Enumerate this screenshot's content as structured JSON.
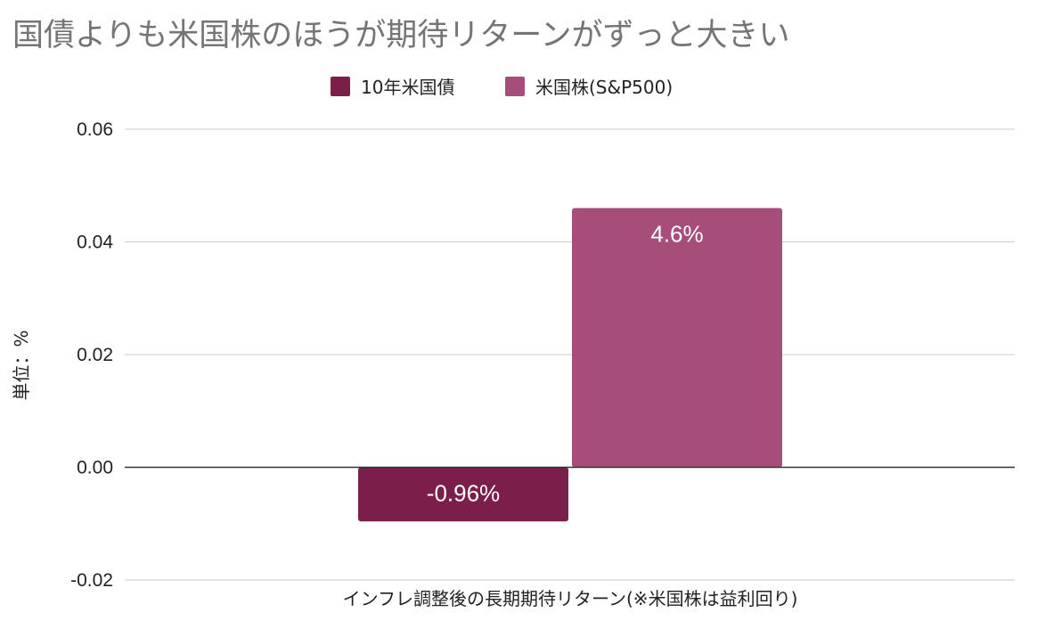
{
  "chart_data": {
    "type": "bar",
    "title": "国債よりも米国株のほうが期待リターンがずっと大きい",
    "xlabel": "インフレ調整後の長期期待リターン(※米国株は益利回り)",
    "ylabel": "単位：%",
    "ylim": [
      -0.02,
      0.06
    ],
    "yticks": [
      0.06,
      0.04,
      0.02,
      0.0,
      -0.02
    ],
    "ytick_labels": [
      "0.06",
      "0.04",
      "0.02",
      "0.00",
      "-0.02"
    ],
    "grid": true,
    "legend_position": "top-center",
    "categories": [
      ""
    ],
    "series": [
      {
        "name": "10年米国債",
        "values": [
          -0.0096
        ],
        "data_label": "-0.96%",
        "color": "#7b1e4a"
      },
      {
        "name": "米国株(S&P500)",
        "values": [
          0.046
        ],
        "data_label": "4.6%",
        "color": "#a64d79"
      }
    ]
  }
}
